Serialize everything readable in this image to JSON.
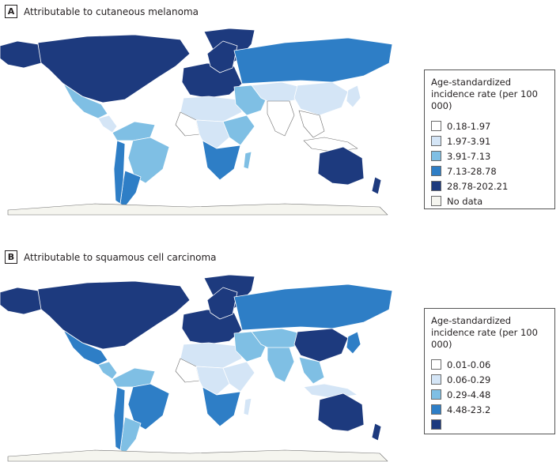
{
  "colors": {
    "bin1": "#ffffff",
    "bin2": "#d4e5f6",
    "bin3": "#7fbfe4",
    "bin4": "#2e7ec6",
    "bin5": "#1d3a7e",
    "no_data": "#f5f5ef",
    "border": "#ffffff",
    "coast": "#6f6f6f"
  },
  "panels": [
    {
      "letter": "A",
      "title": "Attributable to cutaneous melanoma",
      "legend_title": [
        "Age-standardized",
        "incidence rate (per 100 000)"
      ],
      "legend_items": [
        {
          "label": "0.18-1.97",
          "color": "#ffffff"
        },
        {
          "label": "1.97-3.91",
          "color": "#d4e5f6"
        },
        {
          "label": "3.91-7.13",
          "color": "#7fbfe4"
        },
        {
          "label": "7.13-28.78",
          "color": "#2e7ec6"
        },
        {
          "label": "28.78-202.21",
          "color": "#1d3a7e"
        },
        {
          "label": "No data",
          "color": "#f5f5ef"
        }
      ],
      "regions": [
        {
          "name": "north-america",
          "bin": 5
        },
        {
          "name": "alaska",
          "bin": 5
        },
        {
          "name": "greenland",
          "bin": 5
        },
        {
          "name": "mexico",
          "bin": 3
        },
        {
          "name": "central-america",
          "bin": 2
        },
        {
          "name": "south-america-north",
          "bin": 3
        },
        {
          "name": "brazil",
          "bin": 3
        },
        {
          "name": "argentina",
          "bin": 4
        },
        {
          "name": "chile",
          "bin": 4
        },
        {
          "name": "europe",
          "bin": 5
        },
        {
          "name": "scandinavia",
          "bin": 5
        },
        {
          "name": "russia",
          "bin": 4
        },
        {
          "name": "north-africa",
          "bin": 2
        },
        {
          "name": "west-africa",
          "bin": 1
        },
        {
          "name": "central-africa",
          "bin": 2
        },
        {
          "name": "east-africa",
          "bin": 3
        },
        {
          "name": "southern-africa",
          "bin": 4
        },
        {
          "name": "madagascar",
          "bin": 3
        },
        {
          "name": "middle-east",
          "bin": 3
        },
        {
          "name": "central-asia",
          "bin": 2
        },
        {
          "name": "china",
          "bin": 2
        },
        {
          "name": "india",
          "bin": 1
        },
        {
          "name": "southeast-asia",
          "bin": 1
        },
        {
          "name": "japan",
          "bin": 2
        },
        {
          "name": "indonesia",
          "bin": 1
        },
        {
          "name": "australia",
          "bin": 5
        },
        {
          "name": "new-zealand",
          "bin": 5
        },
        {
          "name": "antarctica",
          "bin": 0
        }
      ]
    },
    {
      "letter": "B",
      "title": "Attributable to squamous cell carcinoma",
      "legend_title": [
        "Age-standardized",
        "incidence rate (per 100 000)"
      ],
      "legend_items": [
        {
          "label": "0.01-0.06",
          "color": "#ffffff"
        },
        {
          "label": "0.06-0.29",
          "color": "#d4e5f6"
        },
        {
          "label": "0.29-4.48",
          "color": "#7fbfe4"
        },
        {
          "label": "4.48-23.2",
          "color": "#2e7ec6"
        },
        {
          "label": "",
          "color": "#1d3a7e"
        }
      ],
      "regions": [
        {
          "name": "north-america",
          "bin": 5
        },
        {
          "name": "alaska",
          "bin": 5
        },
        {
          "name": "greenland",
          "bin": 5
        },
        {
          "name": "mexico",
          "bin": 4
        },
        {
          "name": "central-america",
          "bin": 3
        },
        {
          "name": "south-america-north",
          "bin": 3
        },
        {
          "name": "brazil",
          "bin": 4
        },
        {
          "name": "argentina",
          "bin": 3
        },
        {
          "name": "chile",
          "bin": 4
        },
        {
          "name": "europe",
          "bin": 5
        },
        {
          "name": "scandinavia",
          "bin": 5
        },
        {
          "name": "russia",
          "bin": 4
        },
        {
          "name": "north-africa",
          "bin": 2
        },
        {
          "name": "west-africa",
          "bin": 1
        },
        {
          "name": "central-africa",
          "bin": 2
        },
        {
          "name": "east-africa",
          "bin": 2
        },
        {
          "name": "southern-africa",
          "bin": 4
        },
        {
          "name": "madagascar",
          "bin": 2
        },
        {
          "name": "middle-east",
          "bin": 3
        },
        {
          "name": "central-asia",
          "bin": 3
        },
        {
          "name": "china",
          "bin": 5
        },
        {
          "name": "india",
          "bin": 3
        },
        {
          "name": "southeast-asia",
          "bin": 3
        },
        {
          "name": "japan",
          "bin": 4
        },
        {
          "name": "indonesia",
          "bin": 2
        },
        {
          "name": "australia",
          "bin": 5
        },
        {
          "name": "new-zealand",
          "bin": 5
        },
        {
          "name": "antarctica",
          "bin": 0
        }
      ]
    }
  ]
}
